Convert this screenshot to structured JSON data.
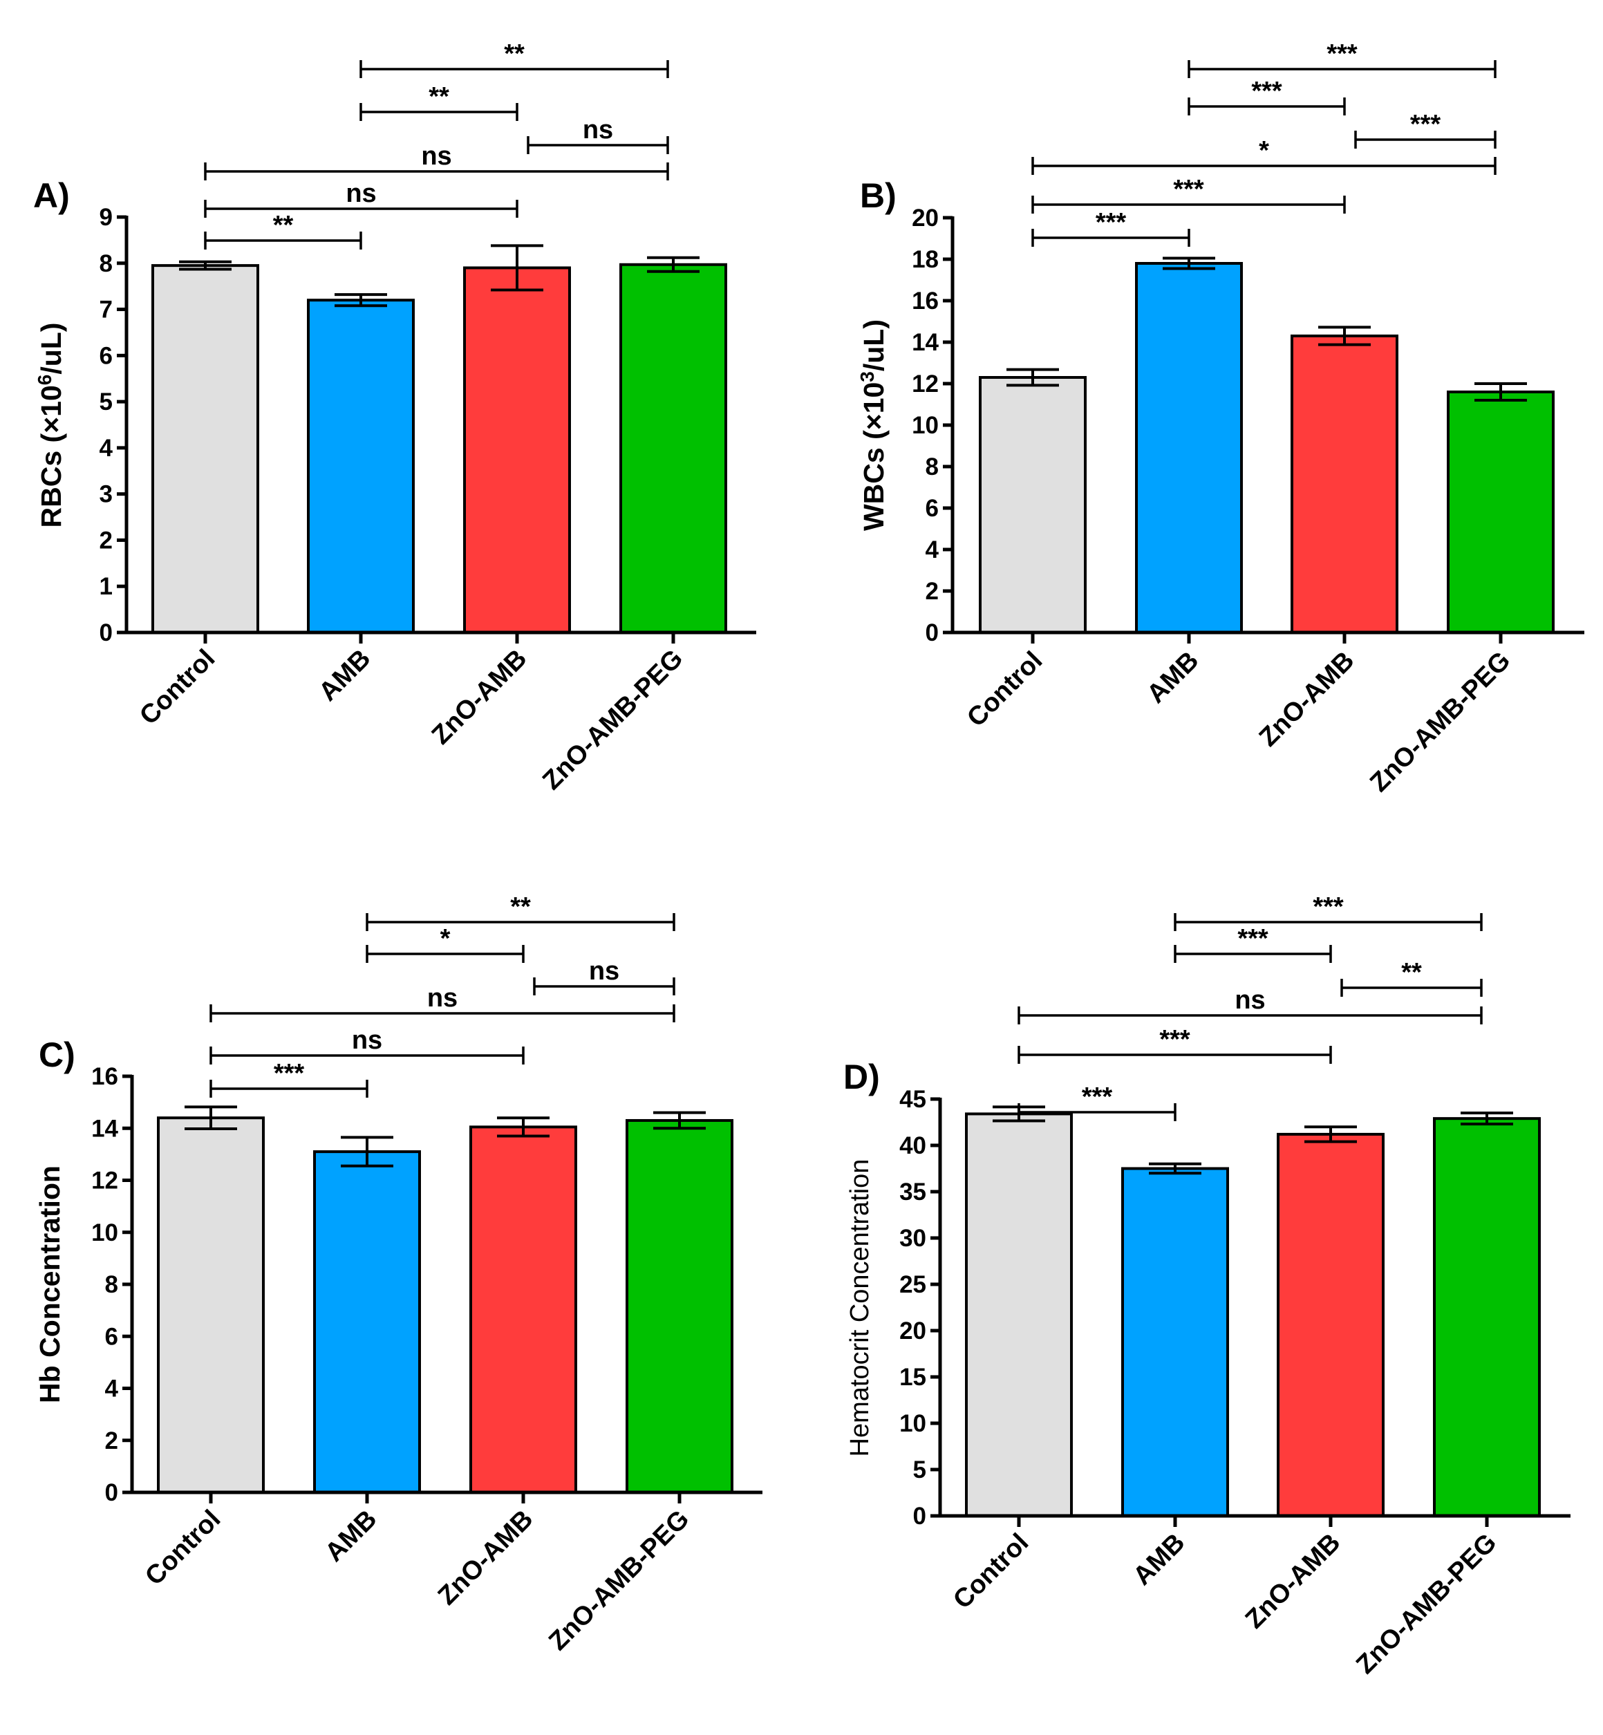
{
  "chart_data": [
    {
      "type": "bar",
      "panel": "A)",
      "ylabel": "RBCs (×10^6/uL)",
      "ylabel_parts": [
        "RBCs (×10",
        "6",
        "/uL)"
      ],
      "categories": [
        "Control",
        "AMB",
        "ZnO-AMB",
        "ZnO-AMB-PEG"
      ],
      "values": [
        7.95,
        7.2,
        7.9,
        7.97
      ],
      "errors": [
        0.08,
        0.12,
        0.48,
        0.15
      ],
      "colors": [
        "#e0e0e0",
        "#00a2ff",
        "#ff3c3c",
        "#00c000"
      ],
      "ylim": [
        0,
        9
      ],
      "yticks": [
        0,
        1,
        2,
        3,
        4,
        5,
        6,
        7,
        8,
        9
      ],
      "comparisons": [
        {
          "a": 0,
          "b": 1,
          "label": "**"
        },
        {
          "a": 0,
          "b": 2,
          "label": "ns"
        },
        {
          "a": 0,
          "b": 3,
          "label": "ns"
        },
        {
          "a": 2,
          "b": 3,
          "label": "ns"
        },
        {
          "a": 1,
          "b": 2,
          "label": "**"
        },
        {
          "a": 1,
          "b": 3,
          "label": "**"
        }
      ]
    },
    {
      "type": "bar",
      "panel": "B)",
      "ylabel": "WBCs (×10^3/uL)",
      "ylabel_parts": [
        "WBCs (×10",
        "3",
        "/uL)"
      ],
      "categories": [
        "Control",
        "AMB",
        "ZnO-AMB",
        "ZnO-AMB-PEG"
      ],
      "values": [
        12.3,
        17.8,
        14.3,
        11.6
      ],
      "errors": [
        0.38,
        0.25,
        0.42,
        0.4
      ],
      "colors": [
        "#e0e0e0",
        "#00a2ff",
        "#ff3c3c",
        "#00c000"
      ],
      "ylim": [
        0,
        20
      ],
      "yticks": [
        0,
        2,
        4,
        6,
        8,
        10,
        12,
        14,
        16,
        18,
        20
      ],
      "comparisons": [
        {
          "a": 0,
          "b": 1,
          "label": "***"
        },
        {
          "a": 0,
          "b": 2,
          "label": "***"
        },
        {
          "a": 0,
          "b": 3,
          "label": "*"
        },
        {
          "a": 2,
          "b": 3,
          "label": "***"
        },
        {
          "a": 1,
          "b": 2,
          "label": "***"
        },
        {
          "a": 1,
          "b": 3,
          "label": "***"
        }
      ]
    },
    {
      "type": "bar",
      "panel": "C)",
      "ylabel": "Hb Concentration",
      "categories": [
        "Control",
        "AMB",
        "ZnO-AMB",
        "ZnO-AMB-PEG"
      ],
      "values": [
        14.4,
        13.1,
        14.05,
        14.3
      ],
      "errors": [
        0.42,
        0.55,
        0.35,
        0.3
      ],
      "colors": [
        "#e0e0e0",
        "#00a2ff",
        "#ff3c3c",
        "#00c000"
      ],
      "ylim": [
        0,
        16
      ],
      "yticks": [
        0,
        2,
        4,
        6,
        8,
        10,
        12,
        14,
        16
      ],
      "comparisons": [
        {
          "a": 0,
          "b": 1,
          "label": "***"
        },
        {
          "a": 0,
          "b": 2,
          "label": "ns"
        },
        {
          "a": 0,
          "b": 3,
          "label": "ns"
        },
        {
          "a": 2,
          "b": 3,
          "label": "ns"
        },
        {
          "a": 1,
          "b": 2,
          "label": "*"
        },
        {
          "a": 1,
          "b": 3,
          "label": "**"
        }
      ]
    },
    {
      "type": "bar",
      "panel": "D)",
      "ylabel": "Hematocrit Concentration",
      "categories": [
        "Control",
        "AMB",
        "ZnO-AMB",
        "ZnO-AMB-PEG"
      ],
      "values": [
        43.4,
        37.5,
        41.2,
        42.9
      ],
      "errors": [
        0.75,
        0.5,
        0.8,
        0.6
      ],
      "colors": [
        "#e0e0e0",
        "#00a2ff",
        "#ff3c3c",
        "#00c000"
      ],
      "ylim": [
        0,
        45
      ],
      "yticks": [
        0,
        5,
        10,
        15,
        20,
        25,
        30,
        35,
        40,
        45
      ],
      "comparisons": [
        {
          "a": 0,
          "b": 1,
          "label": "***"
        },
        {
          "a": 0,
          "b": 2,
          "label": "***"
        },
        {
          "a": 0,
          "b": 3,
          "label": "ns"
        },
        {
          "a": 2,
          "b": 3,
          "label": "**"
        },
        {
          "a": 1,
          "b": 2,
          "label": "***"
        },
        {
          "a": 1,
          "b": 3,
          "label": "***"
        }
      ]
    }
  ]
}
